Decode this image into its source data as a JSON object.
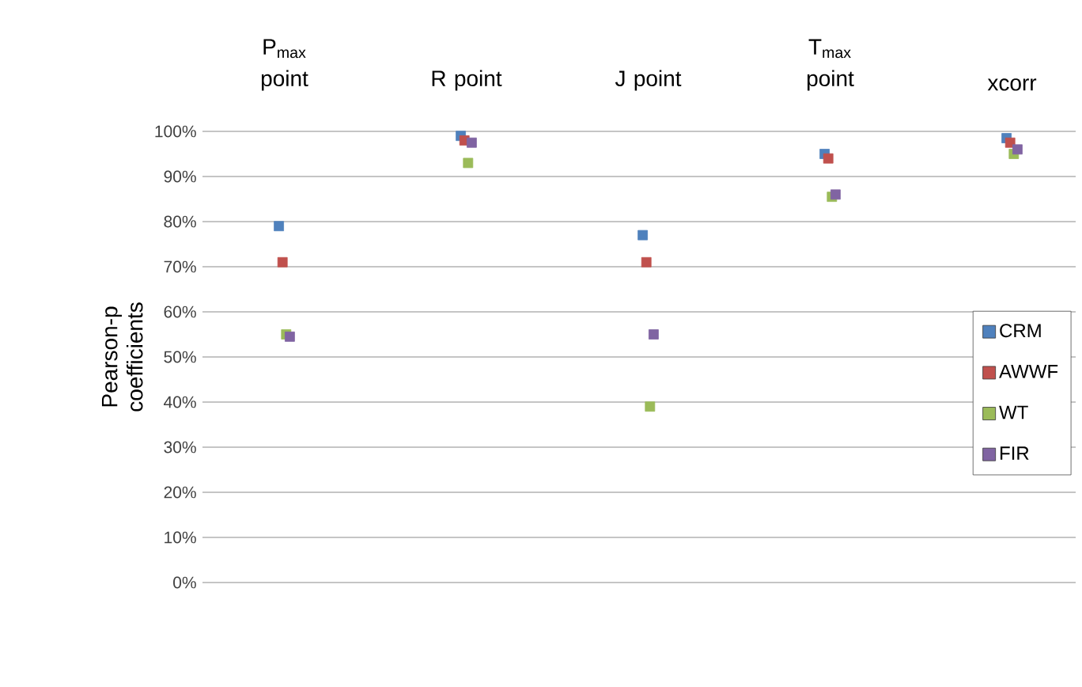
{
  "chart_data": {
    "type": "scatter",
    "ylabel": "Pearson-p coefficients",
    "categories": [
      "P$_{max}$ point",
      "R point",
      "J point",
      "T$_{max}$ point",
      "xcorr"
    ],
    "series": [
      {
        "name": "CRM",
        "color": "#4f81bd",
        "values": [
          79,
          99,
          77,
          95,
          98.5
        ]
      },
      {
        "name": "AWWF",
        "color": "#c0504d",
        "values": [
          71,
          98,
          71,
          94,
          97.5
        ]
      },
      {
        "name": "WT",
        "color": "#9bbb59",
        "values": [
          55,
          93,
          39,
          85.5,
          95
        ]
      },
      {
        "name": "FIR",
        "color": "#8064a2",
        "values": [
          54.5,
          97.5,
          55,
          86,
          96
        ]
      }
    ],
    "ylim": [
      0,
      100
    ],
    "yticks": [
      {
        "value": 0,
        "label": "0%"
      },
      {
        "value": 10,
        "label": "10%"
      },
      {
        "value": 20,
        "label": "20%"
      },
      {
        "value": 30,
        "label": "30%"
      },
      {
        "value": 40,
        "label": "40%"
      },
      {
        "value": 50,
        "label": "50%"
      },
      {
        "value": 60,
        "label": "60%"
      },
      {
        "value": 70,
        "label": "70%"
      },
      {
        "value": 80,
        "label": "80%"
      },
      {
        "value": 90,
        "label": "90%"
      },
      {
        "value": 100,
        "label": "100%"
      }
    ],
    "grid": "y",
    "legend": "right",
    "marker": "square"
  }
}
